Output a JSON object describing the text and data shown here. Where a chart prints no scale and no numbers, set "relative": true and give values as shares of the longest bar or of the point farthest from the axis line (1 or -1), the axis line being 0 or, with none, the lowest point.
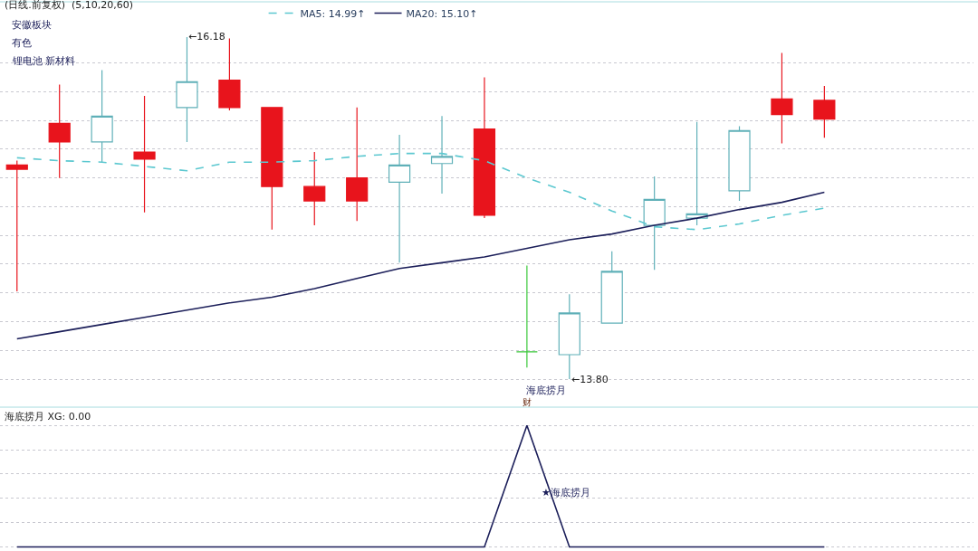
{
  "chart_data": [
    {
      "type": "candlestick",
      "title": "(日线.前复权)  (5,10,20,60)",
      "categories": [
        null,
        null,
        null,
        null,
        null,
        null,
        null,
        null,
        null,
        null,
        null,
        null,
        null,
        null,
        null,
        null,
        null,
        null,
        null,
        null
      ],
      "ohlc": [
        [
          15.29,
          15.32,
          14.41,
          15.26
        ],
        [
          15.58,
          15.85,
          15.2,
          15.45
        ],
        [
          15.45,
          15.95,
          15.31,
          15.63
        ],
        [
          15.38,
          15.77,
          14.96,
          15.33
        ],
        [
          15.69,
          16.18,
          15.45,
          15.87
        ],
        [
          15.88,
          16.17,
          15.67,
          15.69
        ],
        [
          15.69,
          15.69,
          14.84,
          15.14
        ],
        [
          15.14,
          15.38,
          14.87,
          15.04
        ],
        [
          15.2,
          15.69,
          14.9,
          15.04
        ],
        [
          15.17,
          15.5,
          14.61,
          15.29
        ],
        [
          15.3,
          15.63,
          15.09,
          15.35
        ],
        [
          15.54,
          15.9,
          14.92,
          14.94
        ],
        [
          13.99,
          14.59,
          13.88,
          13.99
        ],
        [
          13.97,
          14.39,
          13.8,
          14.26
        ],
        [
          14.19,
          14.69,
          14.19,
          14.55
        ],
        [
          14.87,
          15.21,
          14.56,
          15.05
        ],
        [
          14.92,
          15.59,
          14.87,
          14.95
        ],
        [
          15.11,
          15.56,
          15.04,
          15.53
        ],
        [
          15.75,
          16.07,
          15.44,
          15.64
        ],
        [
          15.74,
          15.84,
          15.48,
          15.61
        ]
      ],
      "colors": [
        "#e8141c",
        "#e8141c",
        "#5fb0b8",
        "#e8141c",
        "#5fb0b8",
        "#e8141c",
        "#e8141c",
        "#e8141c",
        "#e8141c",
        "#5fb0b8",
        "#5fb0b8",
        "#e8141c",
        "#3cc83c",
        "#5fb0b8",
        "#5fb0b8",
        "#5fb0b8",
        "#5fb0b8",
        "#5fb0b8",
        "#e8141c",
        "#e8141c"
      ],
      "series": [
        {
          "name": "MA5: 14.99↑",
          "type": "line",
          "line_style": "dashed",
          "color": "#5cc8d0",
          "values": [
            15.34,
            15.32,
            15.31,
            15.28,
            15.25,
            15.31,
            15.31,
            15.32,
            15.35,
            15.37,
            15.37,
            15.32,
            15.2,
            15.1,
            14.97,
            14.86,
            14.84,
            14.88,
            14.94,
            14.99
          ]
        },
        {
          "name": "MA20: 15.10↑",
          "type": "line",
          "line_style": "solid",
          "color": "#1c1f5a",
          "values": [
            14.08,
            14.13,
            14.18,
            14.23,
            14.28,
            14.33,
            14.37,
            14.43,
            14.5,
            14.57,
            14.61,
            14.65,
            14.71,
            14.77,
            14.81,
            14.87,
            14.92,
            14.98,
            15.03,
            15.1
          ]
        }
      ],
      "yticks": [
        {
          "value": 13.8,
          "label": null
        },
        {
          "value": 14.0,
          "label": null
        },
        {
          "value": 14.2,
          "label": null
        },
        {
          "value": 14.4,
          "label": null
        },
        {
          "value": 14.6,
          "label": null
        },
        {
          "value": 14.8,
          "label": null
        },
        {
          "value": 15.0,
          "label": null
        },
        {
          "value": 15.2,
          "label": null
        },
        {
          "value": 15.4,
          "label": null
        },
        {
          "value": 15.6,
          "label": null
        },
        {
          "value": 15.8,
          "label": null
        },
        {
          "value": 16.0,
          "label": null
        }
      ],
      "grid": "y",
      "legend": "top",
      "annotations": [
        "安徽板块",
        "有色",
        "锂电池 新材料",
        "←16.18",
        "←13.80",
        "海底捞月"
      ]
    },
    {
      "type": "line",
      "title": "海底捞月 XG: 0.00",
      "categories": [
        null,
        null,
        null,
        null,
        null,
        null,
        null,
        null,
        null,
        null,
        null,
        null,
        null,
        null,
        null,
        null,
        null,
        null,
        null,
        null
      ],
      "relative": true,
      "grid": true,
      "legend": false,
      "series": [
        {
          "name": "★海底捞月",
          "color": "#1c1f5a",
          "values": [
            0,
            0,
            0,
            0,
            0,
            0,
            0,
            0,
            0,
            0,
            0,
            0,
            1,
            0,
            0,
            0,
            0,
            0,
            0,
            0
          ]
        }
      ],
      "annotations": [
        {
          "text": "财",
          "y": 1
        }
      ]
    }
  ]
}
